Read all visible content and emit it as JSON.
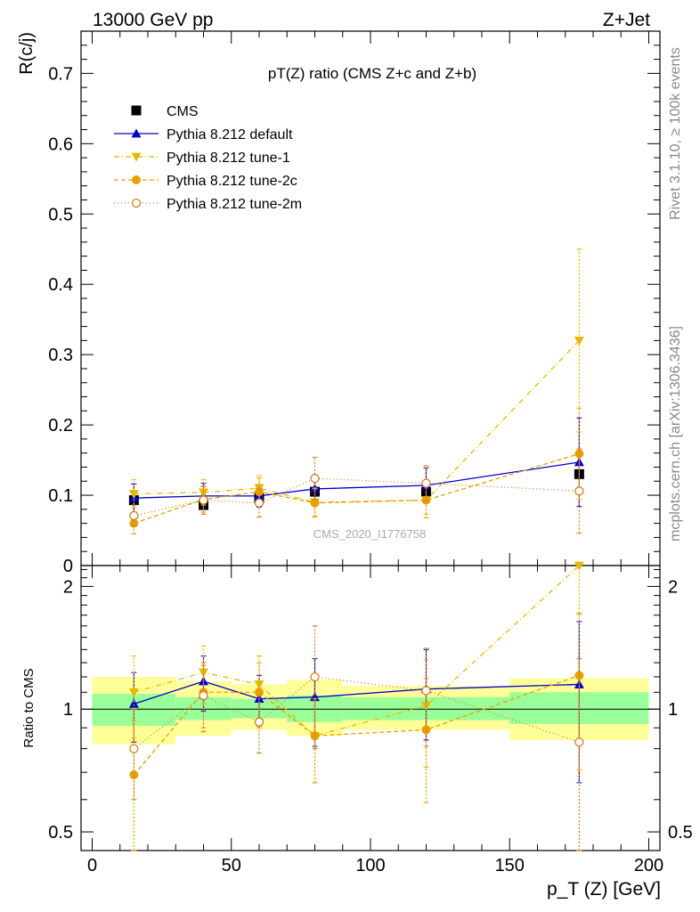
{
  "header": {
    "energy_label": "13000 GeV pp",
    "process_label": "Z+Jet"
  },
  "side": {
    "rivet_label": "Rivet 3.1.10, ≥ 100k events",
    "mcplots_label": "mcplots.cern.ch [arXiv:1306.3436]"
  },
  "chart_data": {
    "type": "scatter",
    "title": "pT(Z) ratio (CMS  Z+c and Z+b)",
    "watermark": "CMS_2020_I1776758",
    "ylabel": "R(c/j)",
    "ratio_ylabel": "Ratio to CMS",
    "xlabel": "p_T (Z) [GeV]",
    "xlim": [
      -4,
      204
    ],
    "ylim": [
      0,
      0.76
    ],
    "ratio_ylim": [
      0.45,
      2.25
    ],
    "xticks": [
      0,
      50,
      100,
      150,
      200
    ],
    "yticks": [
      0,
      0.1,
      0.2,
      0.3,
      0.4,
      0.5,
      0.6,
      0.7
    ],
    "ytick_labels": [
      "0",
      "0.1",
      "0.2",
      "0.3",
      "0.4",
      "0.5",
      "0.6",
      "0.7"
    ],
    "ratio_yticks": [
      0.5,
      1,
      2
    ],
    "ratio_ytick_labels": [
      "0.5",
      "1",
      "2"
    ],
    "legend_position": "top-left",
    "bins": [
      {
        "lo": 0,
        "hi": 30
      },
      {
        "lo": 30,
        "hi": 50
      },
      {
        "lo": 50,
        "hi": 70
      },
      {
        "lo": 70,
        "hi": 90
      },
      {
        "lo": 90,
        "hi": 150
      },
      {
        "lo": 150,
        "hi": 200
      }
    ],
    "data": {
      "name": "CMS",
      "x": [
        15,
        40,
        60,
        80,
        120,
        175
      ],
      "y": [
        0.093,
        0.086,
        0.096,
        0.105,
        0.105,
        0.13
      ],
      "band_inner": [
        [
          0.91,
          1.09
        ],
        [
          0.94,
          1.07
        ],
        [
          0.95,
          1.06
        ],
        [
          0.93,
          1.08
        ],
        [
          0.94,
          1.07
        ],
        [
          0.92,
          1.1
        ]
      ],
      "band_outer": [
        [
          0.82,
          1.2
        ],
        [
          0.86,
          1.17
        ],
        [
          0.89,
          1.15
        ],
        [
          0.86,
          1.18
        ],
        [
          0.89,
          1.14
        ],
        [
          0.84,
          1.19
        ]
      ],
      "color": "#000000"
    },
    "series": [
      {
        "name": "Pythia 8.212 default",
        "color": "#0000cc",
        "marker": "triangle-up",
        "dash": "",
        "x": [
          15,
          40,
          60,
          80,
          120,
          175
        ],
        "y": [
          0.096,
          0.099,
          0.099,
          0.109,
          0.114,
          0.147
        ],
        "err": [
          0.02,
          0.018,
          0.016,
          0.02,
          0.025,
          0.063
        ],
        "ratio": [
          1.03,
          1.17,
          1.06,
          1.07,
          1.12,
          1.15
        ],
        "ratio_err": [
          0.2,
          0.18,
          0.15,
          0.26,
          0.28,
          0.49
        ]
      },
      {
        "name": "Pythia 8.212 tune-1",
        "color": "#e8b800",
        "marker": "triangle-down",
        "dash": "6,3,1,3",
        "x": [
          15,
          40,
          60,
          80,
          120,
          175
        ],
        "y": [
          0.102,
          0.104,
          0.11,
          0.09,
          0.093,
          0.32
        ],
        "err": [
          0.02,
          0.018,
          0.018,
          0.02,
          0.02,
          0.13
        ],
        "ratio": [
          1.1,
          1.23,
          1.15,
          0.86,
          1.02,
          2.42
        ],
        "ratio_err": [
          0.25,
          0.2,
          0.2,
          0.2,
          0.3,
          0.7
        ]
      },
      {
        "name": "Pythia 8.212 tune-2c",
        "color": "#e8a000",
        "marker": "circle",
        "dash": "5,3",
        "x": [
          15,
          40,
          60,
          80,
          120,
          175
        ],
        "y": [
          0.06,
          0.094,
          0.105,
          0.089,
          0.093,
          0.159
        ],
        "err": [
          0.015,
          0.018,
          0.02,
          0.02,
          0.025,
          0.065
        ],
        "ratio": [
          0.69,
          1.1,
          1.1,
          0.86,
          0.89,
          1.21
        ],
        "ratio_err": [
          0.25,
          0.2,
          0.2,
          0.2,
          0.3,
          0.5
        ]
      },
      {
        "name": "Pythia 8.212 tune-2m",
        "color": "#d08020",
        "marker": "circle-open",
        "dash": "1,3",
        "x": [
          15,
          40,
          60,
          80,
          120,
          175
        ],
        "y": [
          0.071,
          0.093,
          0.089,
          0.124,
          0.117,
          0.106
        ],
        "err": [
          0.015,
          0.02,
          0.02,
          0.03,
          0.025,
          0.06
        ],
        "ratio": [
          0.8,
          1.08,
          0.93,
          1.2,
          1.11,
          0.83
        ],
        "ratio_err": [
          0.2,
          0.2,
          0.15,
          0.4,
          0.3,
          0.5
        ]
      }
    ]
  }
}
